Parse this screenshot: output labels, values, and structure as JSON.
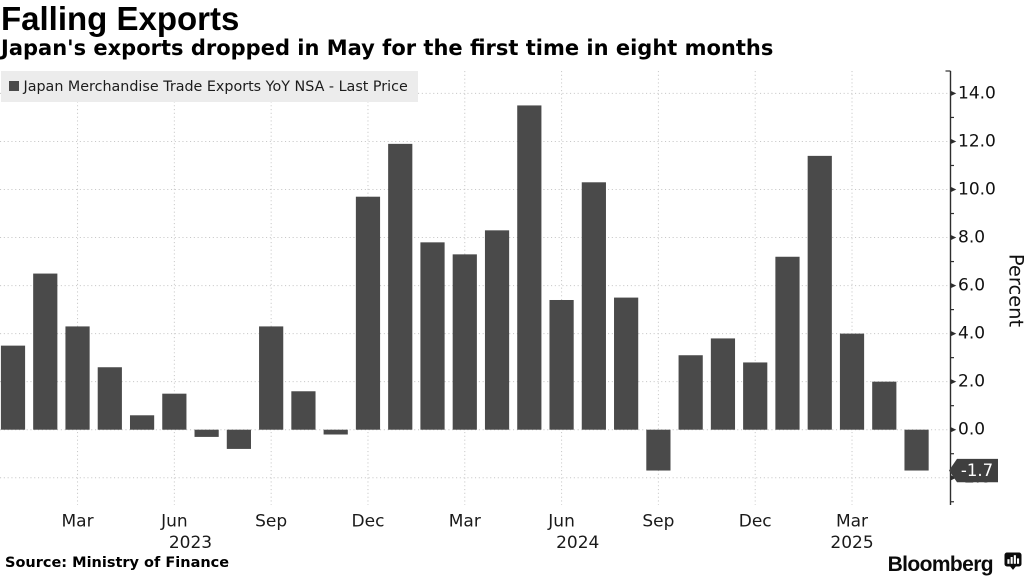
{
  "header": {
    "title": "Falling Exports",
    "subtitle": "Japan's exports dropped in May for the first time in eight months"
  },
  "legend": {
    "label": "Japan Merchandise Trade Exports YoY NSA - Last Price",
    "marker_color": "#4a4a4a"
  },
  "chart_data": {
    "type": "bar",
    "title": "Falling Exports",
    "xlabel": "",
    "ylabel": "Percent",
    "ylim": [
      -3.1,
      14.9
    ],
    "grid": true,
    "legend_position": "top-left",
    "bar_color": "#4a4a4a",
    "axis_side": "right",
    "y_major_tick_step": 2.0,
    "y_minor_tick_step": 1.0,
    "y_tick_labels": [
      "-2.0",
      "0.0",
      "2.0",
      "4.0",
      "6.0",
      "8.0",
      "10.0",
      "12.0",
      "14.0"
    ],
    "y_tick_values": [
      -2,
      0,
      2,
      4,
      6,
      8,
      10,
      12,
      14
    ],
    "x_tick_months": [
      "Mar",
      "Jun",
      "Sep",
      "Dec"
    ],
    "last_price": -1.7,
    "last_price_label": "-1.7",
    "series": [
      {
        "name": "Japan Merchandise Trade Exports YoY NSA - Last Price",
        "points": [
          {
            "year": 2023,
            "month": "Jan",
            "value": 3.5
          },
          {
            "year": 2023,
            "month": "Feb",
            "value": 6.5
          },
          {
            "year": 2023,
            "month": "Mar",
            "value": 4.3
          },
          {
            "year": 2023,
            "month": "Apr",
            "value": 2.6
          },
          {
            "year": 2023,
            "month": "May",
            "value": 0.6
          },
          {
            "year": 2023,
            "month": "Jun",
            "value": 1.5
          },
          {
            "year": 2023,
            "month": "Jul",
            "value": -0.3
          },
          {
            "year": 2023,
            "month": "Aug",
            "value": -0.8
          },
          {
            "year": 2023,
            "month": "Sep",
            "value": 4.3
          },
          {
            "year": 2023,
            "month": "Oct",
            "value": 1.6
          },
          {
            "year": 2023,
            "month": "Nov",
            "value": -0.2
          },
          {
            "year": 2023,
            "month": "Dec",
            "value": 9.7
          },
          {
            "year": 2024,
            "month": "Jan",
            "value": 11.9
          },
          {
            "year": 2024,
            "month": "Feb",
            "value": 7.8
          },
          {
            "year": 2024,
            "month": "Mar",
            "value": 7.3
          },
          {
            "year": 2024,
            "month": "Apr",
            "value": 8.3
          },
          {
            "year": 2024,
            "month": "May",
            "value": 13.5
          },
          {
            "year": 2024,
            "month": "Jun",
            "value": 5.4
          },
          {
            "year": 2024,
            "month": "Jul",
            "value": 10.3
          },
          {
            "year": 2024,
            "month": "Aug",
            "value": 5.5
          },
          {
            "year": 2024,
            "month": "Sep",
            "value": -1.7
          },
          {
            "year": 2024,
            "month": "Oct",
            "value": 3.1
          },
          {
            "year": 2024,
            "month": "Nov",
            "value": 3.8
          },
          {
            "year": 2024,
            "month": "Dec",
            "value": 2.8
          },
          {
            "year": 2025,
            "month": "Jan",
            "value": 7.2
          },
          {
            "year": 2025,
            "month": "Feb",
            "value": 11.4
          },
          {
            "year": 2025,
            "month": "Mar",
            "value": 4.0
          },
          {
            "year": 2025,
            "month": "Apr",
            "value": 2.0
          },
          {
            "year": 2025,
            "month": "May",
            "value": -1.7
          }
        ]
      }
    ]
  },
  "footer": {
    "source": "Source: Ministry of Finance",
    "brand": "Bloomberg"
  },
  "colors": {
    "background": "#ffffff",
    "bar": "#4a4a4a",
    "gridline": "#c8c8c8",
    "axis": "#2e2e2e",
    "legend_background": "#ececec",
    "badge_background": "#3f3f3f",
    "badge_text": "#ffffff",
    "text": "#000000"
  }
}
